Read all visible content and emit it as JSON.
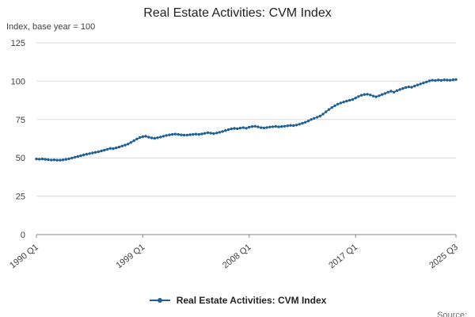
{
  "header": {
    "title": "Real Estate Activities: CVM Index"
  },
  "axis_unit_label": "Index, base year = 100",
  "legend": {
    "label": "Real Estate Activities: CVM Index"
  },
  "source": {
    "label": "Source:"
  },
  "colors": {
    "series": "#206095",
    "grid": "#d9d9d9",
    "axis": "#858585",
    "text": "#414042"
  },
  "chart_data": {
    "type": "line",
    "title": "Real Estate Activities: CVM Index",
    "ylabel": "Index, base year = 100",
    "ylim": [
      0,
      125
    ],
    "yticks": [
      0,
      25,
      50,
      75,
      100,
      125
    ],
    "grid": true,
    "legend_position": "bottom",
    "x_start": "1990 Q1",
    "x_end": "2025 Q3",
    "x_frequency": "quarterly",
    "x_tick_labels": [
      {
        "label": "1990 Q1",
        "index": 0
      },
      {
        "label": "1999 Q1",
        "index": 36
      },
      {
        "label": "2008 Q1",
        "index": 72
      },
      {
        "label": "2017 Q1",
        "index": 108
      },
      {
        "label": "2025 Q3",
        "index": 142
      }
    ],
    "series": [
      {
        "name": "Real Estate Activities: CVM Index",
        "color": "#206095",
        "values": [
          49.3,
          49.1,
          49.3,
          49.0,
          48.8,
          48.6,
          48.7,
          48.5,
          48.5,
          48.7,
          49.0,
          49.4,
          49.9,
          50.4,
          50.9,
          51.4,
          51.9,
          52.4,
          52.8,
          53.2,
          53.6,
          54.0,
          54.5,
          55.0,
          55.6,
          56.2,
          56.0,
          56.5,
          57.1,
          57.7,
          58.3,
          59.0,
          60.0,
          61.2,
          62.3,
          63.2,
          63.8,
          64.1,
          63.5,
          63.0,
          62.7,
          63.1,
          63.6,
          64.1,
          64.6,
          65.0,
          65.3,
          65.5,
          65.3,
          65.0,
          64.8,
          64.9,
          65.1,
          65.3,
          65.5,
          65.3,
          65.6,
          66.0,
          66.4,
          66.1,
          65.8,
          66.2,
          66.7,
          67.2,
          67.8,
          68.4,
          68.9,
          69.2,
          69.0,
          69.4,
          69.7,
          69.3,
          70.0,
          70.4,
          70.6,
          70.2,
          69.7,
          69.5,
          69.8,
          70.1,
          70.3,
          70.5,
          70.2,
          70.4,
          70.6,
          70.9,
          71.2,
          71.0,
          71.4,
          71.9,
          72.5,
          73.2,
          74.0,
          75.0,
          75.8,
          76.5,
          77.2,
          78.5,
          80.0,
          81.5,
          82.8,
          84.0,
          85.0,
          85.8,
          86.4,
          87.0,
          87.5,
          88.0,
          89.0,
          90.0,
          90.8,
          91.3,
          91.5,
          91.0,
          90.3,
          89.8,
          90.5,
          91.3,
          92.0,
          92.8,
          93.5,
          92.8,
          93.8,
          94.5,
          95.2,
          95.8,
          96.3,
          96.0,
          96.8,
          97.5,
          98.2,
          98.8,
          99.5,
          100.2,
          100.6,
          100.4,
          100.8,
          100.5,
          100.9,
          100.7,
          100.6,
          100.9,
          101.1
        ]
      }
    ]
  }
}
